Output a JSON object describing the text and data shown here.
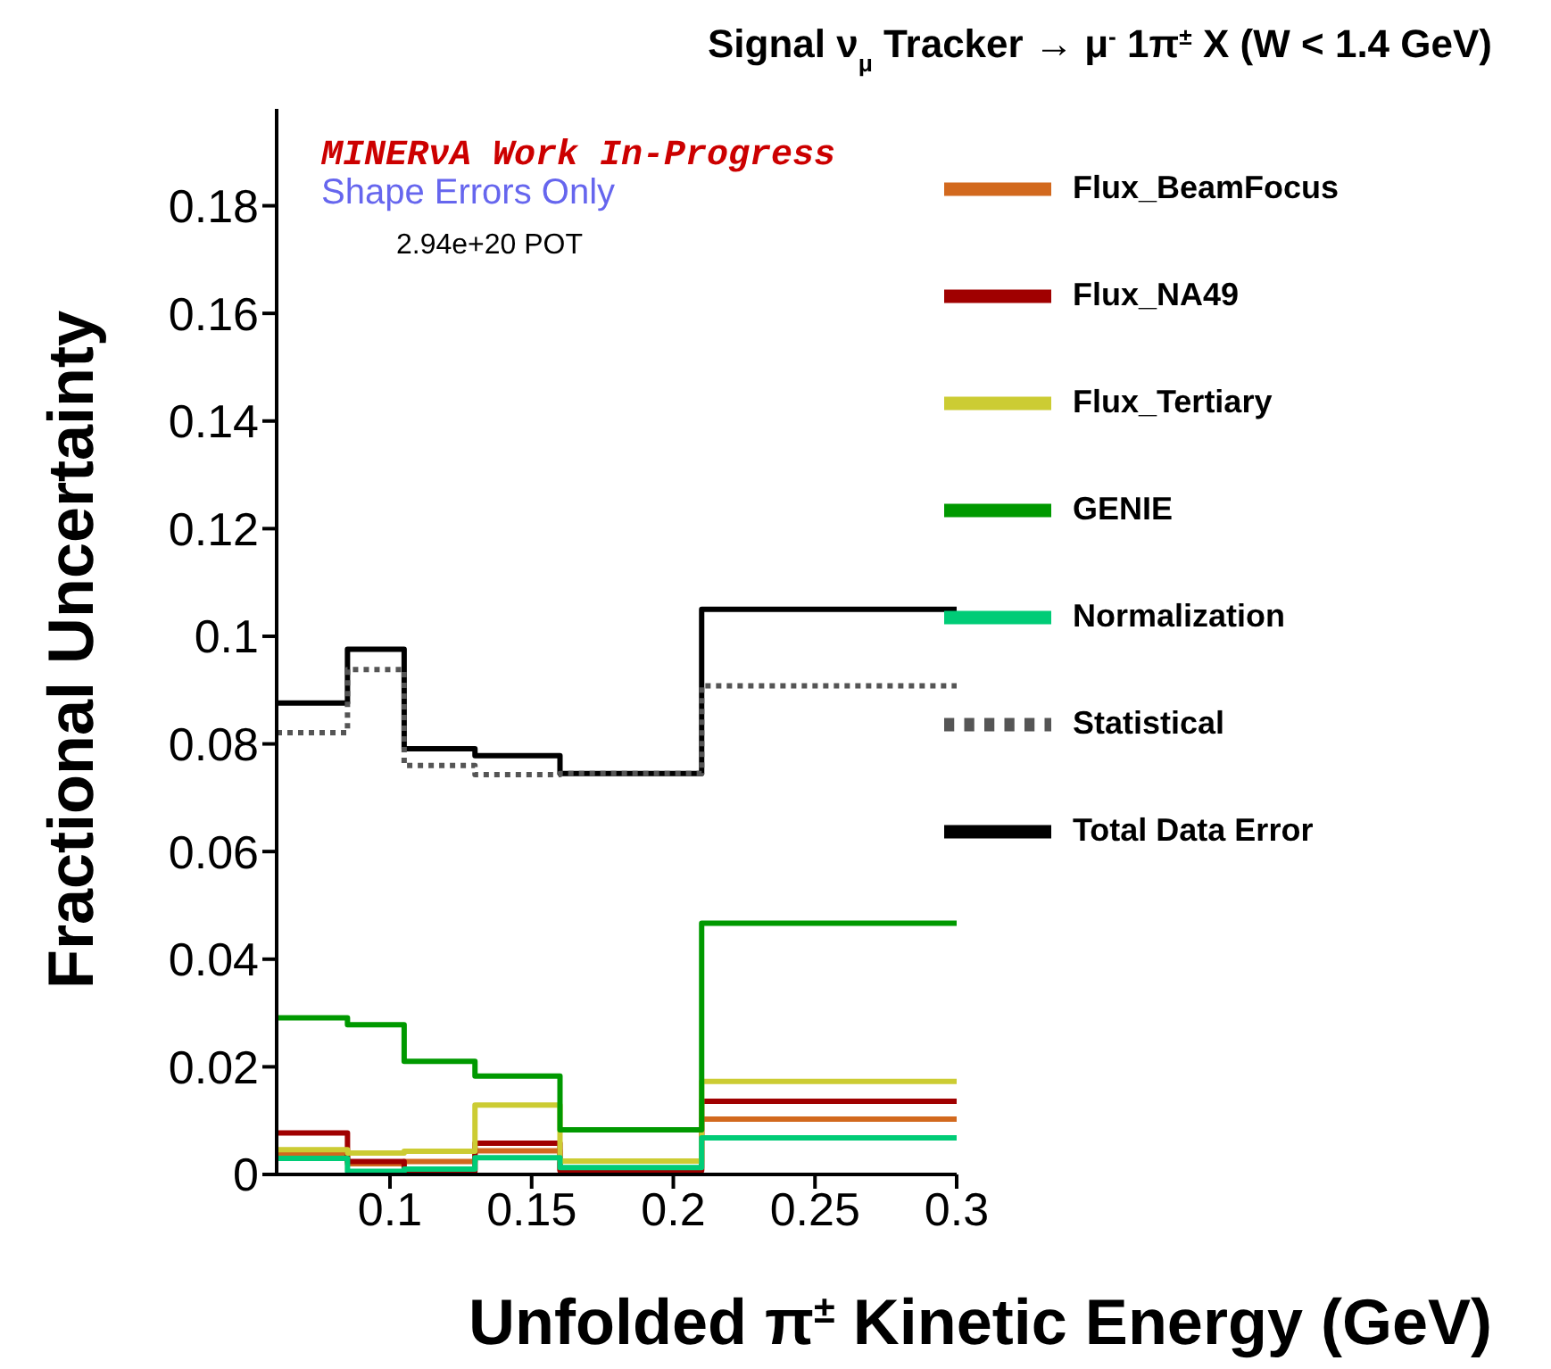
{
  "chart_data": {
    "type": "histogram",
    "title": "Signal ν$_{μ}$ Tracker → μ$^{-}$ 1π$^{±}$ X  (W < 1.4 GeV)",
    "xlabel": "Unfolded π$^{±}$ Kinetic Energy (GeV)",
    "ylabel": "Fractional Uncertainty",
    "annotations": [
      "MINERνA Work In-Progress",
      "Shape Errors Only",
      "2.94e+20 POT"
    ],
    "bins": [
      0.06,
      0.085,
      0.105,
      0.13,
      0.16,
      0.21,
      0.3
    ],
    "series": [
      {
        "name": "Total Data Error",
        "color": "#000000",
        "values": [
          0.0876,
          0.0976,
          0.0791,
          0.0778,
          0.0745,
          0.105
        ]
      },
      {
        "name": "Statistical",
        "color": "#555555",
        "line_style": "dotted",
        "values": [
          0.0821,
          0.0938,
          0.076,
          0.0743,
          0.0745,
          0.0908
        ]
      },
      {
        "name": "Flux_BeamFocus",
        "color": "#d2691e",
        "values": [
          0.004,
          0.002,
          0.0024,
          0.0044,
          0.0009,
          0.0103
        ]
      },
      {
        "name": "Flux_NA49",
        "color": "#a00000",
        "values": [
          0.0077,
          0.0024,
          0.0006,
          0.0058,
          0.0007,
          0.0136
        ]
      },
      {
        "name": "Flux_Tertiary",
        "color": "#cccc33",
        "values": [
          0.0046,
          0.004,
          0.0043,
          0.0129,
          0.0025,
          0.0173
        ]
      },
      {
        "name": "GENIE",
        "color": "#009900",
        "values": [
          0.0291,
          0.0278,
          0.021,
          0.0183,
          0.0083,
          0.0467
        ]
      },
      {
        "name": "Normalization",
        "color": "#00cc77",
        "values": [
          0.003,
          0.0006,
          0.001,
          0.0031,
          0.0013,
          0.0068
        ]
      }
    ],
    "xlim": [
      0.06,
      0.3
    ],
    "xticks": [
      0.1,
      0.15,
      0.2,
      0.25,
      0.3
    ],
    "ylim": [
      0,
      0.198
    ],
    "yticks": [
      0,
      0.02,
      0.04,
      0.06,
      0.08,
      0.1,
      0.12,
      0.14,
      0.16,
      0.18
    ],
    "grid": false,
    "legend": "top right"
  }
}
